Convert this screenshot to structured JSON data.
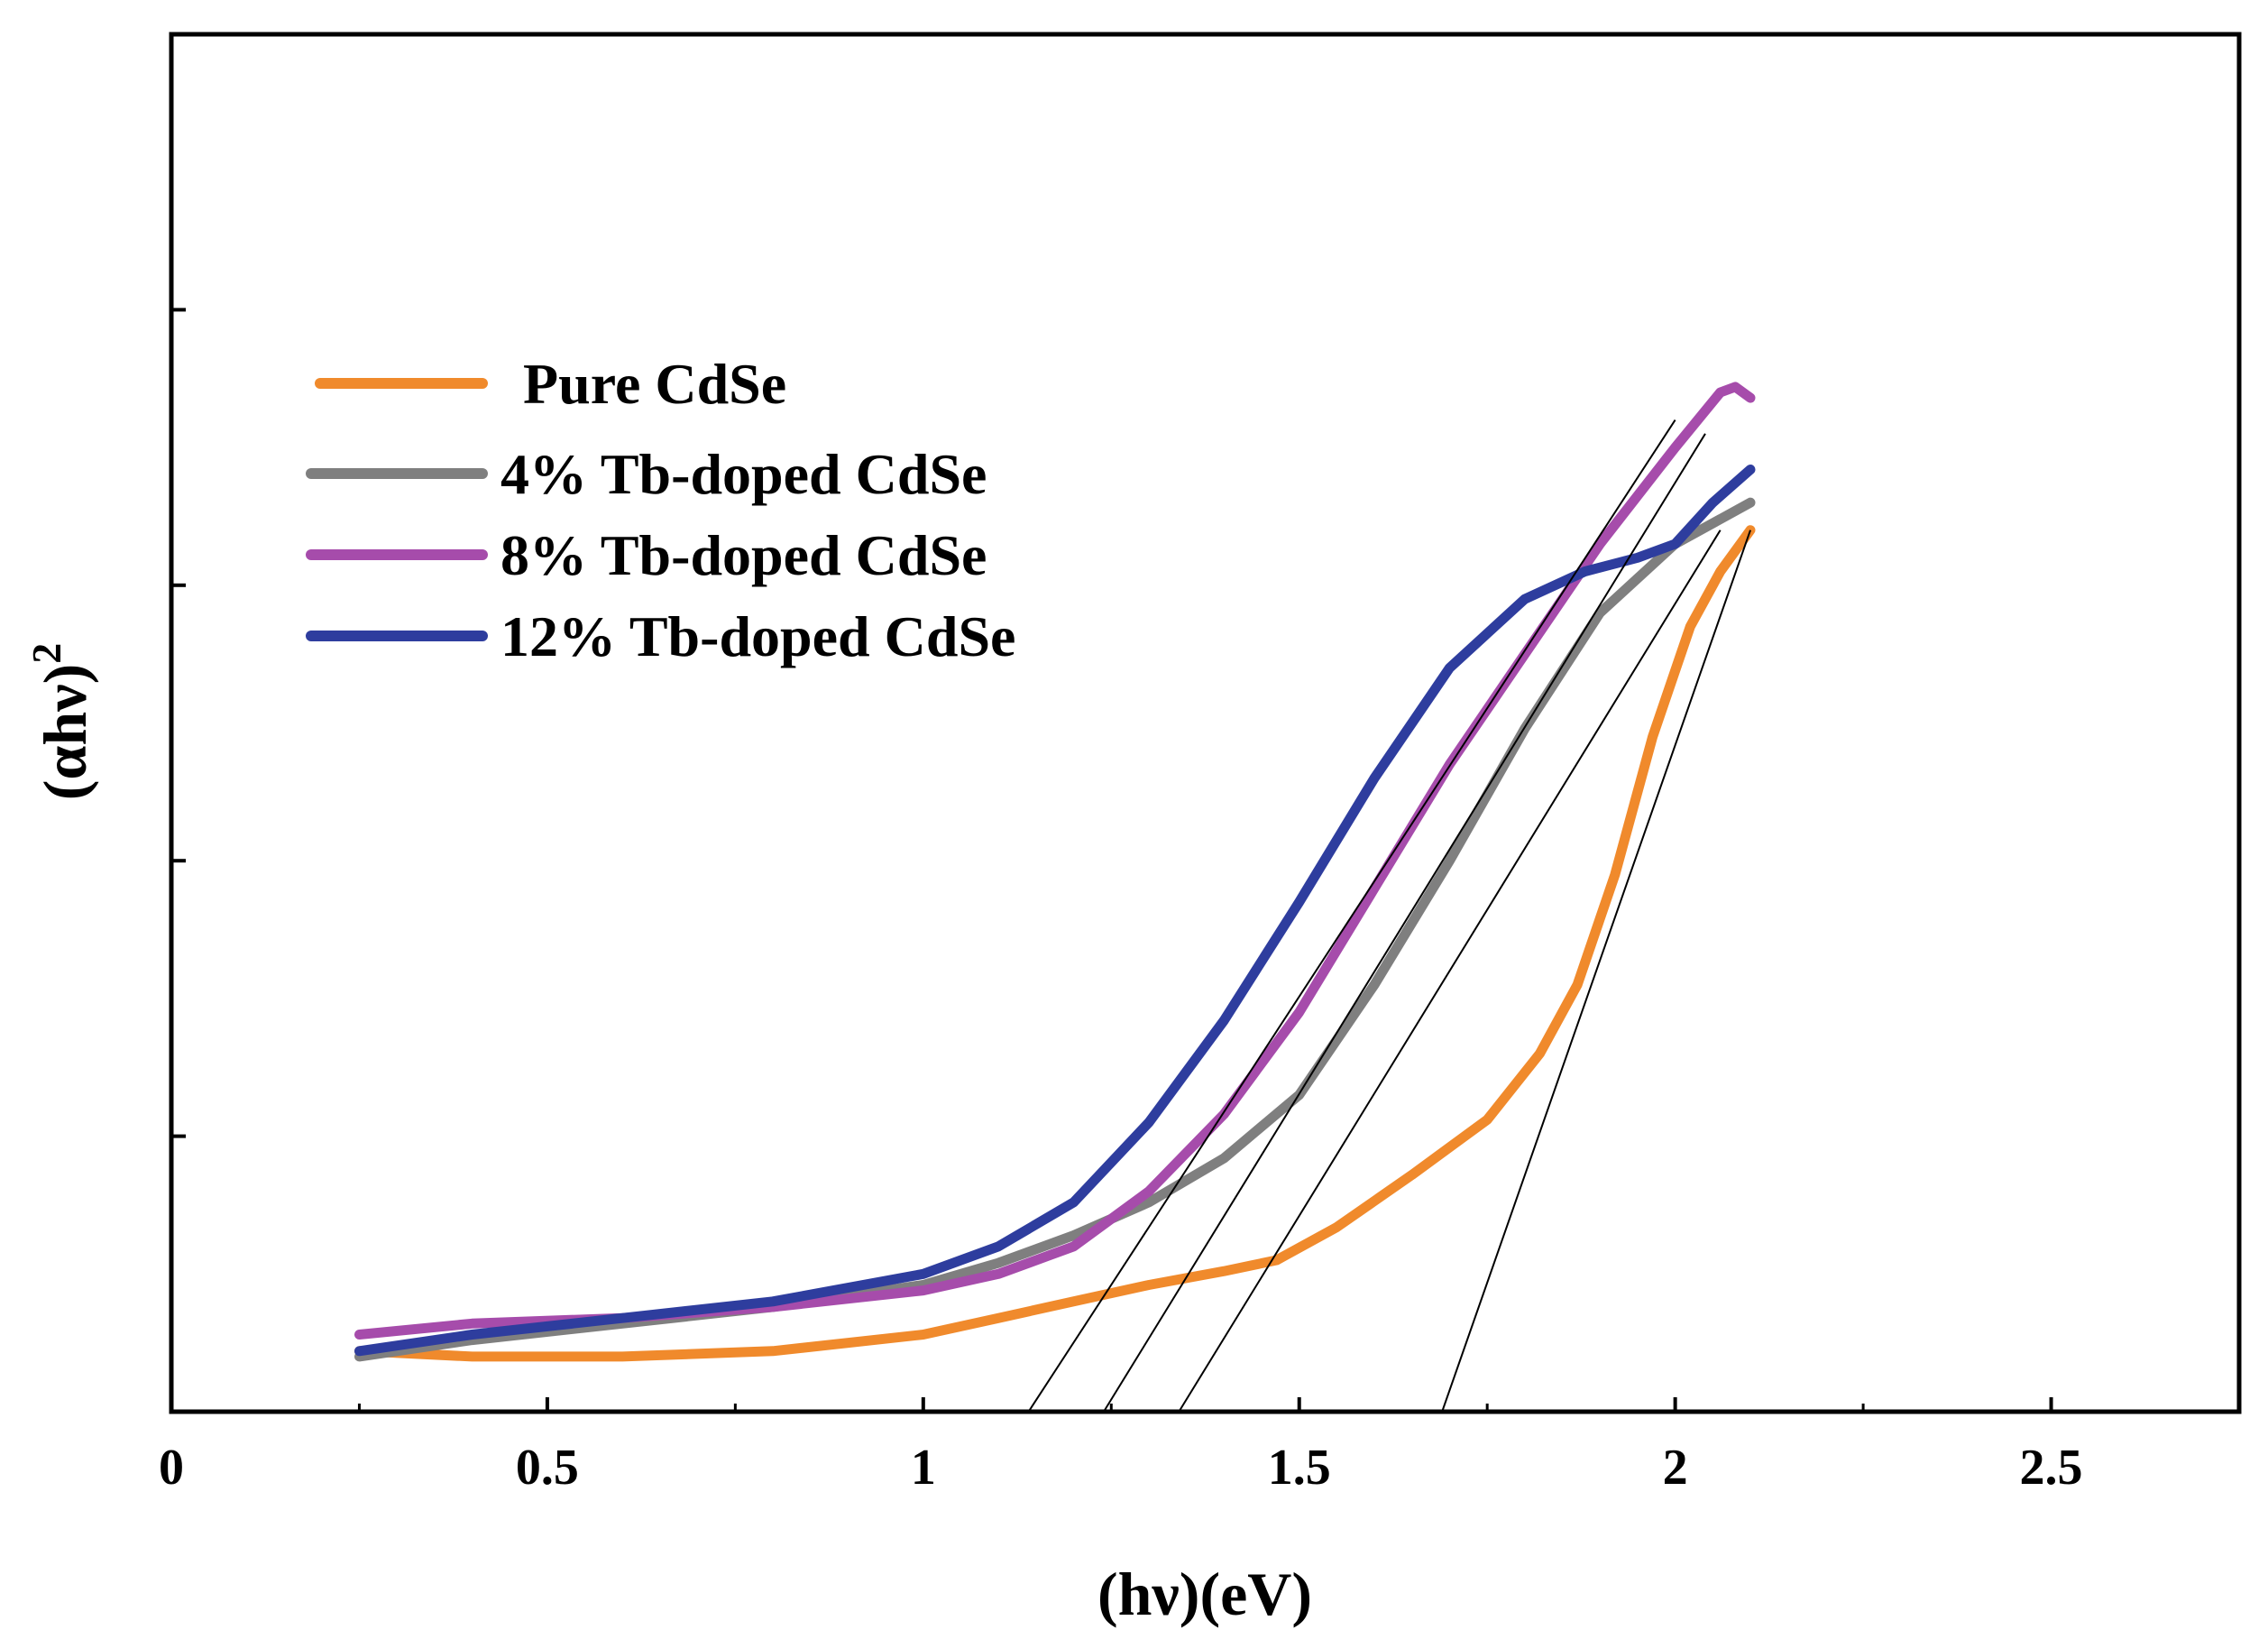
{
  "chart_data": {
    "type": "line",
    "title": "",
    "xlabel": "(hν)(eV)",
    "ylabel": "(αhν)²",
    "ylabel_base": "(αhν)",
    "ylabel_sup": "2",
    "xlim": [
      0,
      2.75
    ],
    "ylim": [
      0,
      5
    ],
    "xticks": [
      0,
      0.5,
      1,
      1.5,
      2,
      2.5
    ],
    "xtick_labels": [
      "0",
      "0.5",
      "1",
      "1.5",
      "2",
      "2.5"
    ],
    "yticks": [
      1,
      2,
      3,
      4,
      5
    ],
    "ytick_labels": [],
    "grid": false,
    "legend_position": "upper-left",
    "series": [
      {
        "name": "Pure CdSe",
        "color": "#f08a2c",
        "x": [
          0.25,
          0.4,
          0.6,
          0.8,
          1.0,
          1.1,
          1.2,
          1.3,
          1.4,
          1.47,
          1.55,
          1.65,
          1.75,
          1.82,
          1.87,
          1.92,
          1.97,
          2.02,
          2.06,
          2.1
        ],
        "y": [
          0.22,
          0.2,
          0.2,
          0.22,
          0.28,
          0.34,
          0.4,
          0.46,
          0.51,
          0.55,
          0.67,
          0.86,
          1.06,
          1.3,
          1.55,
          1.95,
          2.45,
          2.85,
          3.05,
          3.2
        ]
      },
      {
        "name": "4% Tb-doped CdSe",
        "color": "#7f7f7f",
        "x": [
          0.25,
          0.4,
          0.6,
          0.8,
          1.0,
          1.1,
          1.2,
          1.3,
          1.4,
          1.5,
          1.6,
          1.7,
          1.8,
          1.9,
          2.0,
          2.1
        ],
        "y": [
          0.2,
          0.26,
          0.32,
          0.38,
          0.46,
          0.54,
          0.64,
          0.76,
          0.92,
          1.15,
          1.55,
          2.0,
          2.48,
          2.9,
          3.15,
          3.3
        ]
      },
      {
        "name": "8% Tb-doped CdSe",
        "color": "#a64cab",
        "x": [
          0.25,
          0.4,
          0.6,
          0.8,
          1.0,
          1.1,
          1.2,
          1.3,
          1.4,
          1.5,
          1.6,
          1.7,
          1.8,
          1.9,
          2.0,
          2.06,
          2.08,
          2.1
        ],
        "y": [
          0.28,
          0.32,
          0.34,
          0.38,
          0.44,
          0.5,
          0.6,
          0.8,
          1.08,
          1.45,
          1.9,
          2.35,
          2.75,
          3.15,
          3.5,
          3.7,
          3.72,
          3.68
        ]
      },
      {
        "name": "12% Tb-doped CdSe",
        "color": "#2e3d9e",
        "x": [
          0.25,
          0.4,
          0.6,
          0.8,
          1.0,
          1.1,
          1.2,
          1.3,
          1.4,
          1.5,
          1.6,
          1.7,
          1.8,
          1.88,
          1.95,
          2.0,
          2.05,
          2.1
        ],
        "y": [
          0.22,
          0.28,
          0.34,
          0.4,
          0.5,
          0.6,
          0.76,
          1.05,
          1.42,
          1.85,
          2.3,
          2.7,
          2.95,
          3.05,
          3.1,
          3.15,
          3.3,
          3.42
        ]
      }
    ],
    "fit_lines": [
      {
        "series": "Pure CdSe",
        "x": [
          1.69,
          2.1
        ],
        "y": [
          0,
          3.2
        ]
      },
      {
        "series": "4% Tb-doped CdSe",
        "x": [
          1.34,
          2.06
        ],
        "y": [
          0,
          3.2
        ]
      },
      {
        "series": "8% Tb-doped CdSe",
        "x": [
          1.24,
          2.04
        ],
        "y": [
          0,
          3.55
        ]
      },
      {
        "series": "12% Tb-doped CdSe",
        "x": [
          1.14,
          2.0
        ],
        "y": [
          0,
          3.6
        ]
      }
    ]
  }
}
